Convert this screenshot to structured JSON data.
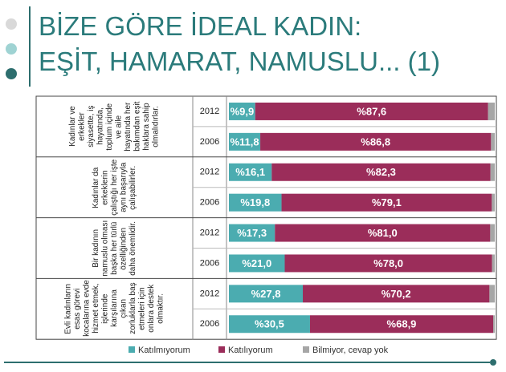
{
  "title_lines": [
    "BİZE GÖRE İDEAL KADIN:",
    "EŞİT, HAMARAT, NAMUSLU... (1)"
  ],
  "chart_data": {
    "type": "bar",
    "orientation": "horizontal",
    "stacked": true,
    "group_labels": [
      "Kadınlar ve erkekler siyasette, iş hayatında, toplum içinde ve aile hayatında her bakımdan eşit haklara sahip olmalıdırlar.",
      "Kadınlar da erkeklerin çalıştığı her işte aynı başarıyla çalışabilirler.",
      "Bir kadının namuslu olması başka her türlü özelliğinden daha önemlidir.",
      "Evli kadınların esas görevi kocalarına evde hizmet etmek, işlerinde karşılarına çıkan zorluklarla baş etmeleri için onlara destek olmaktır."
    ],
    "categories": [
      "2012",
      "2006",
      "2012",
      "2006",
      "2012",
      "2006",
      "2012",
      "2006"
    ],
    "xlim": [
      0,
      100
    ],
    "series": [
      {
        "name": "Katılmıyorum",
        "color": "#4bacb0",
        "values": [
          9.9,
          11.8,
          16.1,
          19.8,
          17.3,
          21.0,
          27.8,
          30.5
        ],
        "value_labels": [
          "%9,9",
          "%11,8",
          "%16,1",
          "%19,8",
          "%17,3",
          "%21,0",
          "%27,8",
          "%30,5"
        ]
      },
      {
        "name": "Katılıyorum",
        "color": "#9b2d5a",
        "values": [
          87.6,
          86.8,
          82.3,
          79.1,
          81.0,
          78.0,
          70.2,
          68.9
        ],
        "value_labels": [
          "%87,6",
          "%86,8",
          "%82,3",
          "%79,1",
          "%81,0",
          "%78,0",
          "%70,2",
          "%68,9"
        ]
      },
      {
        "name": "Bilmiyor, cevap yok",
        "color": "#a6a6a6",
        "values": [
          2.5,
          1.4,
          1.6,
          1.1,
          1.7,
          1.0,
          2.0,
          0.6
        ]
      }
    ]
  }
}
